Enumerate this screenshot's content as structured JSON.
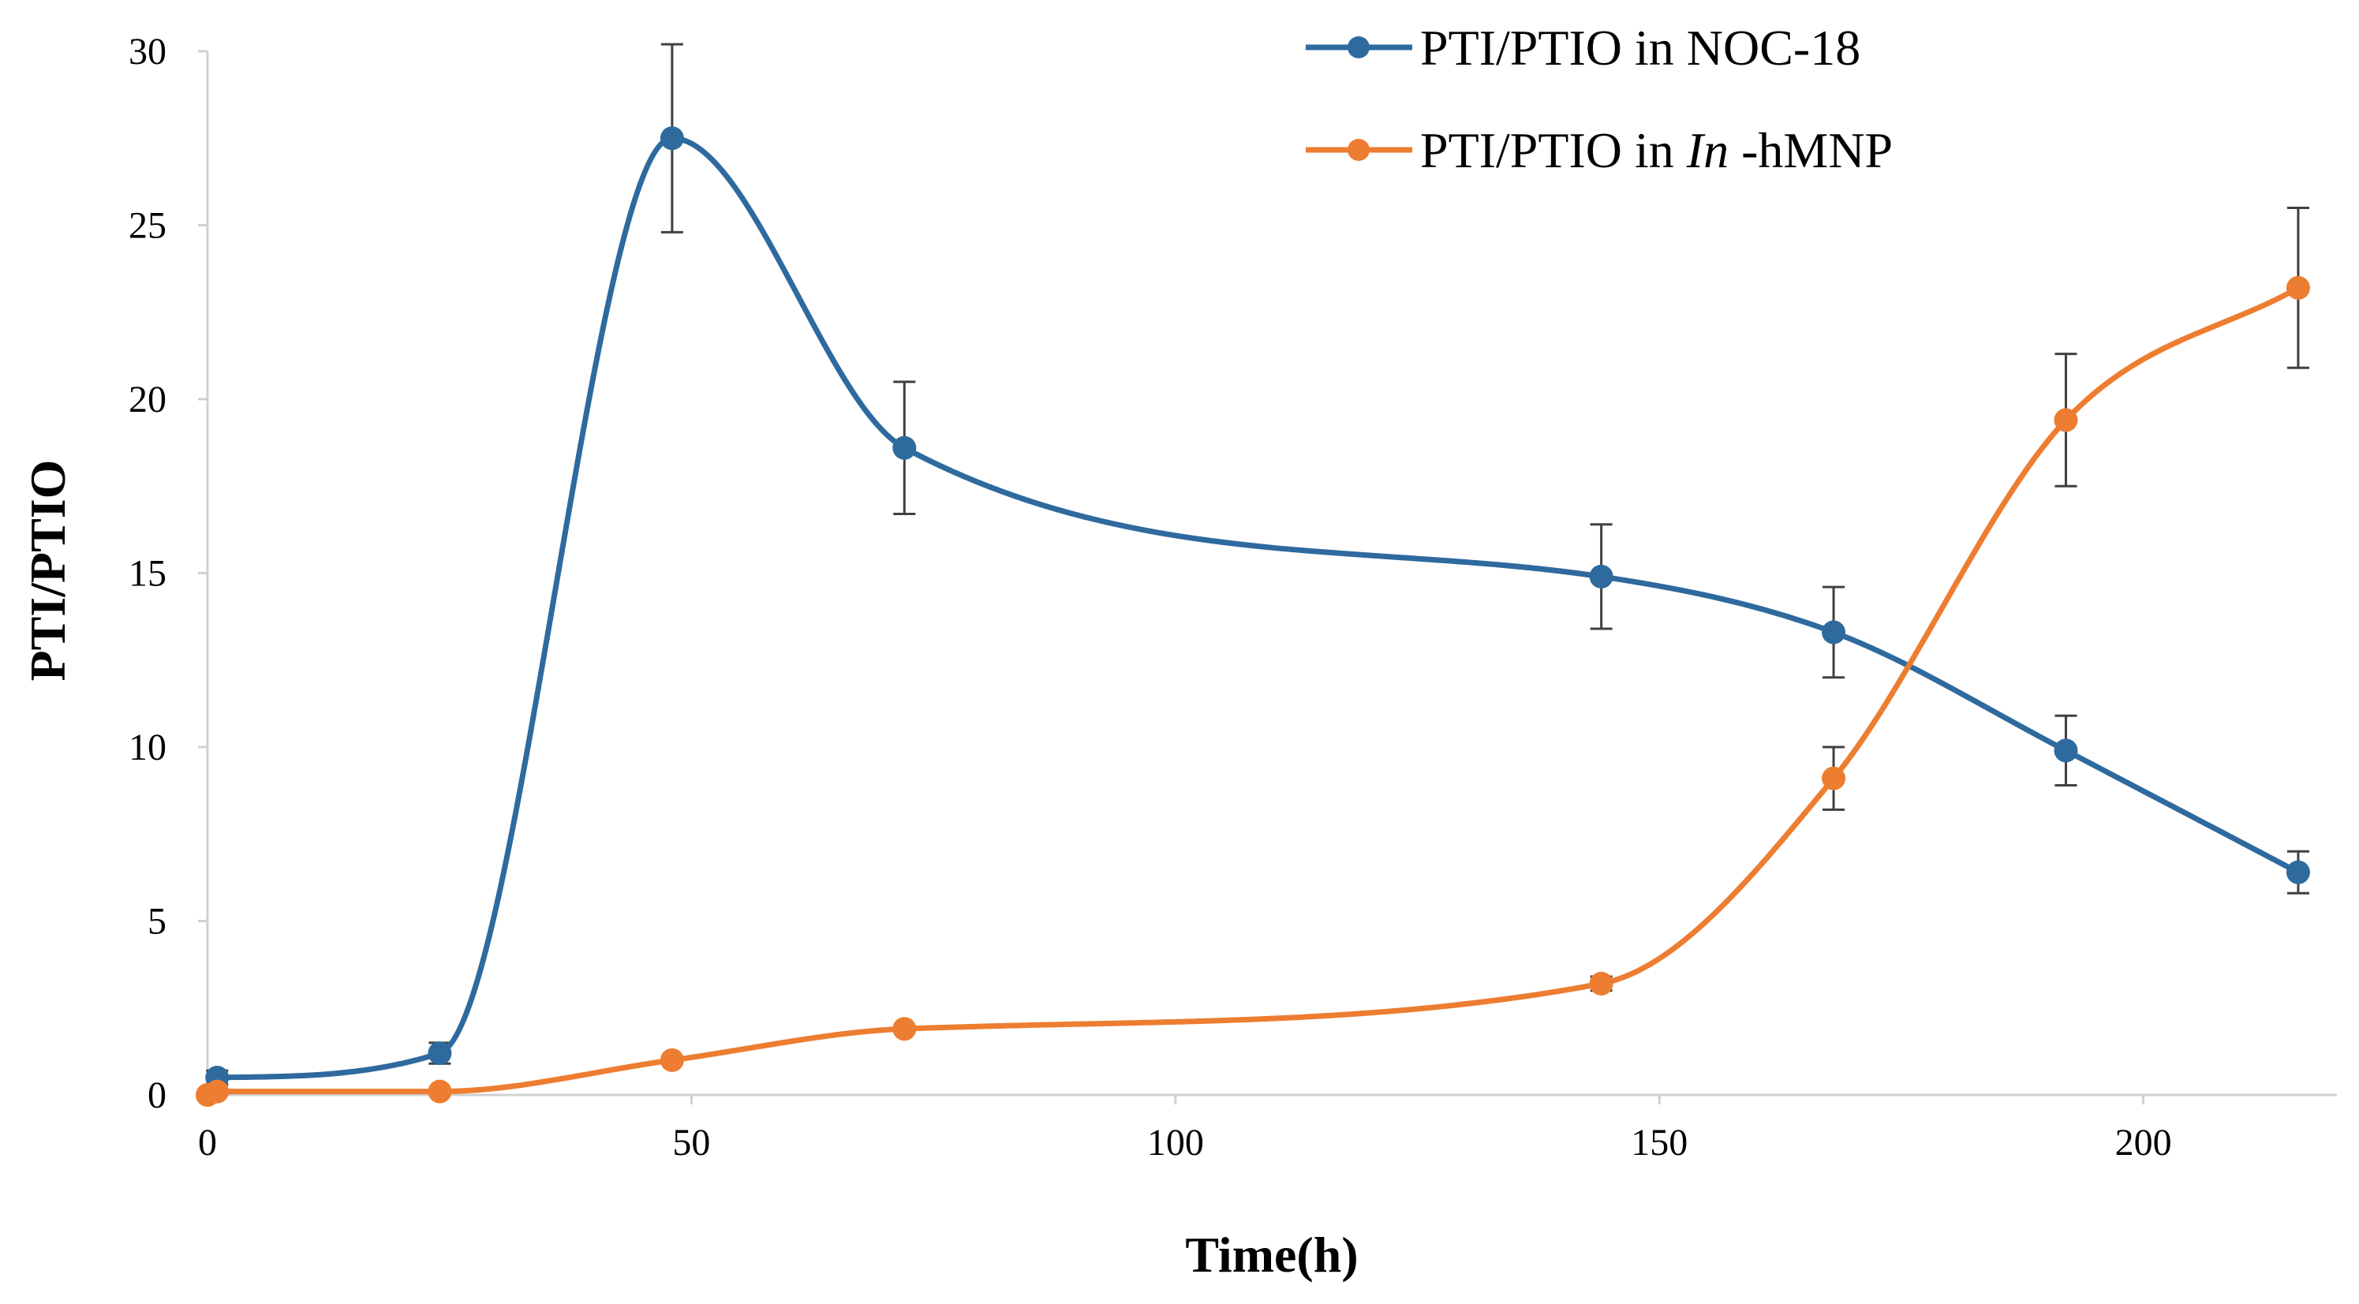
{
  "chart_data": {
    "type": "line",
    "title": "",
    "xlabel": "Time(h)",
    "ylabel": "PTI/PTIO",
    "xlim": [
      0,
      220
    ],
    "ylim": [
      0,
      30
    ],
    "xticks": [
      0,
      50,
      100,
      150,
      200
    ],
    "yticks": [
      0,
      5,
      10,
      15,
      20,
      25,
      30
    ],
    "xtick_labels": [
      "0",
      "50",
      "100",
      "150",
      "200"
    ],
    "ytick_labels": [
      "0",
      "5",
      "10",
      "15",
      "20",
      "25",
      "30"
    ],
    "grid": false,
    "legend_position": "top-right",
    "series": [
      {
        "name": "PTI/PTIO in NOC-18",
        "legend_prefix": "PTI/PTIO in NOC-18",
        "legend_italic": "",
        "legend_suffix": "",
        "color": "#2e6a9e",
        "x": [
          1,
          24,
          48,
          72,
          144,
          168,
          192,
          216
        ],
        "y": [
          0.5,
          1.2,
          27.5,
          18.6,
          14.9,
          13.3,
          9.9,
          6.4
        ],
        "err": [
          0.2,
          0.3,
          2.7,
          1.9,
          1.5,
          1.3,
          1.0,
          0.6
        ]
      },
      {
        "name": "PTI/PTIO in In-hMNP",
        "legend_prefix": "PTI/PTIO in ",
        "legend_italic": "In",
        "legend_suffix": "-hMNP",
        "color": "#ed7d31",
        "x": [
          0,
          1,
          24,
          48,
          72,
          144,
          168,
          192,
          216
        ],
        "y": [
          0,
          0.1,
          0.1,
          1.0,
          1.9,
          3.2,
          9.1,
          19.4,
          23.2
        ],
        "err": [
          0,
          0,
          0,
          0,
          0,
          0.2,
          0.9,
          1.9,
          2.3
        ]
      }
    ]
  }
}
